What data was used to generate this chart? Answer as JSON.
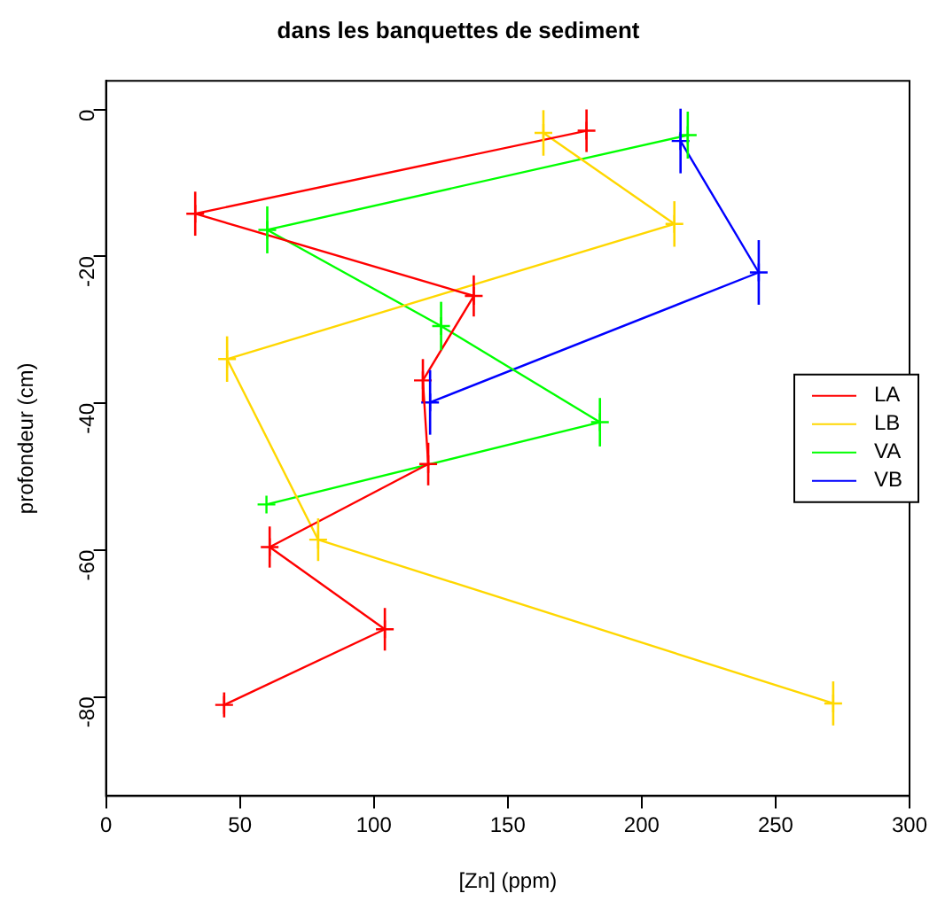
{
  "chart_data": {
    "type": "line",
    "title": "dans les banquettes de sediment",
    "xlabel": "[Zn] (ppm)",
    "ylabel": "profondeur (cm)",
    "xlim": [
      0,
      300
    ],
    "xticks": [
      0,
      50,
      100,
      150,
      200,
      250,
      300
    ],
    "ylim": [
      -93.5,
      3.9
    ],
    "yticks": [
      -80,
      -60,
      -40,
      -20,
      0
    ],
    "legend": "right",
    "marker": "cross",
    "line_style": "solid",
    "series": [
      {
        "name": "LA",
        "color": "#ff0000",
        "x": [
          179.4,
          33.3,
          137.3,
          118.3,
          120.3,
          61.1,
          104.1,
          44.1
        ],
        "values": [
          -2.9,
          -14.2,
          -25.4,
          -36.9,
          -48.3,
          -59.6,
          -70.8,
          -81.1
        ],
        "errors": [
          2.9,
          3,
          2.8,
          2.9,
          2.9,
          2.8,
          2.9,
          1.7
        ]
      },
      {
        "name": "LB",
        "color": "#ffd700",
        "x": [
          163.3,
          212.2,
          45.2,
          79.2,
          271.5
        ],
        "values": [
          -3.2,
          -15.6,
          -34,
          -58.6,
          -80.9
        ],
        "errors": [
          3.1,
          3.1,
          3.1,
          2.9,
          3
        ]
      },
      {
        "name": "VA",
        "color": "#00ff00",
        "x": [
          217.2,
          60.2,
          125.1,
          184.4,
          59.9
        ],
        "values": [
          -3.5,
          -16.4,
          -29.5,
          -42.6,
          -53.8
        ],
        "errors": [
          3.2,
          3.2,
          3.3,
          3.3,
          null
        ]
      },
      {
        "name": "VB",
        "color": "#0000ff",
        "x": [
          214.5,
          243.7,
          121
        ],
        "values": [
          -4.3,
          -22.2,
          -39.9
        ],
        "errors": [
          4.4,
          4.4,
          4.4
        ]
      }
    ]
  }
}
